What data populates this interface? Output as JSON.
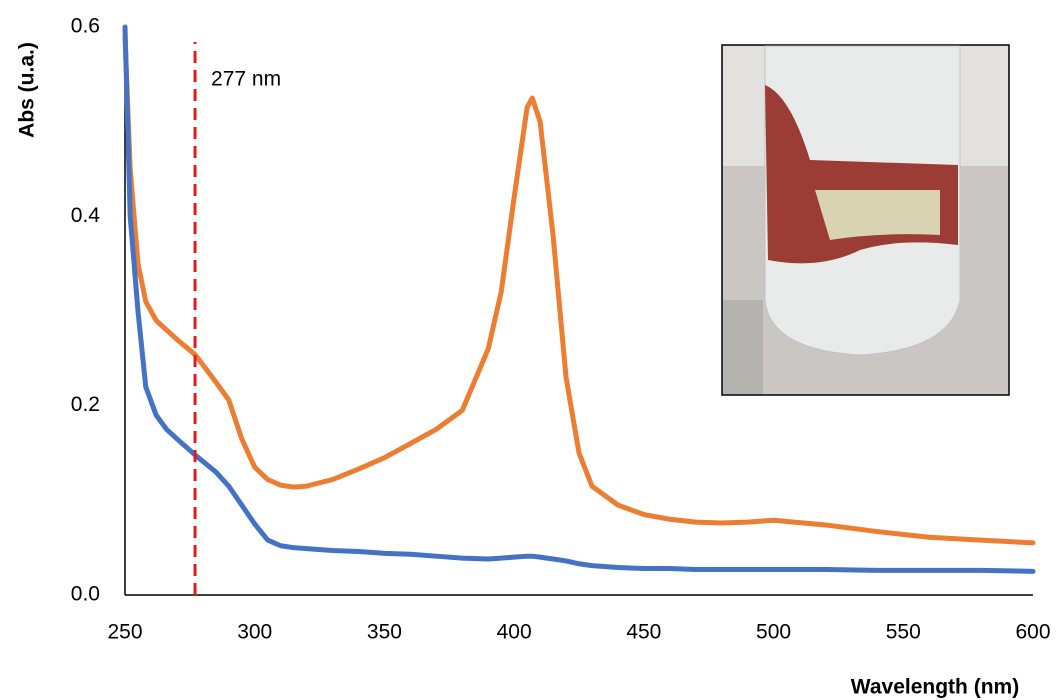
{
  "chart_data": {
    "type": "line",
    "x_label": "Wavelength (nm)",
    "y_label": "Abs (u.a.)",
    "x": [
      250,
      252,
      255,
      258,
      262,
      266,
      270,
      277,
      285,
      290,
      295,
      300,
      305,
      310,
      315,
      320,
      330,
      340,
      350,
      360,
      370,
      380,
      390,
      395,
      400,
      405,
      407,
      410,
      415,
      420,
      425,
      430,
      440,
      450,
      460,
      470,
      480,
      490,
      500,
      520,
      540,
      560,
      580,
      600
    ],
    "series": [
      {
        "color": "#ed7d31",
        "values": [
          0.59,
          0.45,
          0.35,
          0.31,
          0.29,
          0.28,
          0.27,
          0.254,
          0.225,
          0.206,
          0.165,
          0.135,
          0.122,
          0.116,
          0.114,
          0.115,
          0.122,
          0.133,
          0.145,
          0.16,
          0.175,
          0.195,
          0.26,
          0.32,
          0.42,
          0.515,
          0.525,
          0.5,
          0.38,
          0.23,
          0.15,
          0.115,
          0.095,
          0.085,
          0.08,
          0.077,
          0.076,
          0.077,
          0.079,
          0.074,
          0.067,
          0.061,
          0.058,
          0.055
        ]
      },
      {
        "color": "#4472c4",
        "values": [
          0.6,
          0.4,
          0.3,
          0.22,
          0.19,
          0.175,
          0.165,
          0.148,
          0.13,
          0.115,
          0.095,
          0.075,
          0.058,
          0.052,
          0.05,
          0.049,
          0.047,
          0.046,
          0.044,
          0.043,
          0.041,
          0.039,
          0.038,
          0.039,
          0.04,
          0.041,
          0.041,
          0.04,
          0.038,
          0.036,
          0.033,
          0.031,
          0.029,
          0.028,
          0.028,
          0.027,
          0.027,
          0.027,
          0.027,
          0.027,
          0.026,
          0.026,
          0.026,
          0.025
        ]
      }
    ],
    "xlim": [
      250,
      600
    ],
    "xticks": [
      250,
      300,
      350,
      400,
      450,
      500,
      550,
      600
    ],
    "ylim": [
      0,
      0.6
    ],
    "yticks": [
      {
        "value": 0,
        "label": "0.0"
      },
      0.2,
      0.4,
      0.6
    ],
    "grid": false,
    "annotation": {
      "label": "277 nm",
      "x": 277,
      "color": "#e8191c"
    }
  }
}
